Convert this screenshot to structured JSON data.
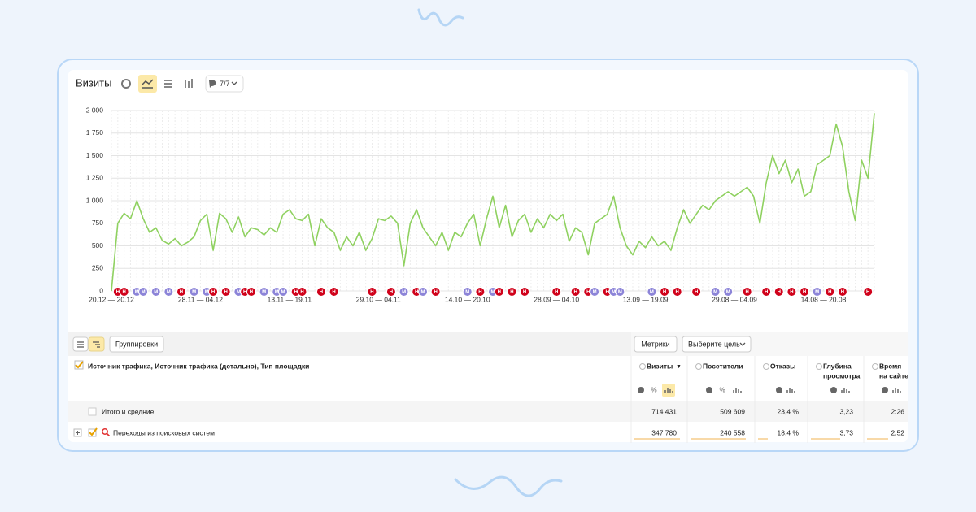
{
  "header": {
    "title": "Визиты",
    "counter": "7/7"
  },
  "chart_data": {
    "type": "line",
    "categories": [
      "20.12 — 20.12",
      null,
      null,
      null,
      null,
      null,
      null,
      null,
      null,
      null,
      null,
      null,
      null,
      null,
      "28.11 — 04.12",
      null,
      null,
      null,
      null,
      null,
      null,
      null,
      null,
      null,
      null,
      null,
      null,
      null,
      "13.11 — 19.11",
      null,
      null,
      null,
      null,
      null,
      null,
      null,
      null,
      null,
      null,
      null,
      null,
      null,
      "29.10 — 04.11",
      null,
      null,
      null,
      null,
      null,
      null,
      null,
      null,
      null,
      null,
      null,
      null,
      null,
      "14.10 — 20.10",
      null,
      null,
      null,
      null,
      null,
      null,
      null,
      null,
      null,
      null,
      null,
      null,
      null,
      "28.09 — 04.10",
      null,
      null,
      null,
      null,
      null,
      null,
      null,
      null,
      null,
      null,
      null,
      null,
      null,
      "13.09 — 19.09",
      null,
      null,
      null,
      null,
      null,
      null,
      null,
      null,
      null,
      null,
      null,
      null,
      null,
      "29.08 — 04.09",
      null,
      null,
      null,
      null,
      null,
      null,
      null,
      null,
      null,
      null,
      null,
      null,
      null,
      "14.08 — 20.08",
      null,
      null,
      null,
      null,
      null,
      null,
      null,
      null
    ],
    "series": [
      {
        "color": "#8fd160",
        "values": [
          0,
          750,
          860,
          800,
          1000,
          800,
          650,
          700,
          560,
          520,
          580,
          500,
          540,
          600,
          780,
          850,
          450,
          860,
          800,
          650,
          820,
          600,
          700,
          680,
          620,
          700,
          650,
          850,
          900,
          800,
          780,
          850,
          500,
          800,
          700,
          650,
          450,
          600,
          500,
          650,
          450,
          580,
          800,
          780,
          830,
          750,
          280,
          750,
          900,
          700,
          600,
          500,
          650,
          450,
          650,
          600,
          750,
          850,
          500,
          800,
          1050,
          700,
          950,
          600,
          780,
          850,
          650,
          800,
          700,
          850,
          780,
          850,
          550,
          700,
          650,
          400,
          750,
          800,
          850,
          1050,
          700,
          500,
          400,
          550,
          480,
          600,
          500,
          550,
          450,
          700,
          900,
          750,
          850,
          950,
          900,
          1000,
          1050,
          1100,
          1050,
          1100,
          1150,
          1050,
          750,
          1200,
          1500,
          1300,
          1450,
          1200,
          1350,
          1050,
          1100,
          1400,
          1450,
          1500,
          1850,
          1600,
          1100,
          780,
          1450,
          1250,
          1970
        ]
      }
    ],
    "ylim": [
      0,
      2000
    ],
    "yticks": [
      0,
      250,
      500,
      750,
      {
        "value": 1000,
        "label": "1 000"
      },
      {
        "value": 1250,
        "label": "1 250"
      },
      {
        "value": 1500,
        "label": "1 500"
      },
      {
        "value": 1750,
        "label": "1 750"
      },
      {
        "value": 2000,
        "label": "2 000"
      }
    ],
    "grid": true,
    "markers": [
      {
        "x": 1,
        "label": "Н",
        "color": "#d0021b"
      },
      {
        "x": 2,
        "label": "Н",
        "color": "#d0021b"
      },
      {
        "x": 4,
        "label": "М",
        "color": "#8c84d8"
      },
      {
        "x": 5,
        "label": "М",
        "color": "#8c84d8"
      },
      {
        "x": 7,
        "label": "М",
        "color": "#8c84d8"
      },
      {
        "x": 9,
        "label": "М",
        "color": "#8c84d8"
      },
      {
        "x": 11,
        "label": "Н",
        "color": "#d0021b"
      },
      {
        "x": 13,
        "label": "М",
        "color": "#8c84d8"
      },
      {
        "x": 15,
        "label": "М",
        "color": "#8c84d8"
      },
      {
        "x": 16,
        "label": "Н",
        "color": "#d0021b"
      },
      {
        "x": 18,
        "label": "Н",
        "color": "#d0021b"
      },
      {
        "x": 20,
        "label": "М",
        "color": "#8c84d8"
      },
      {
        "x": 21,
        "label": "Н",
        "color": "#d0021b"
      },
      {
        "x": 22,
        "label": "Н",
        "color": "#d0021b"
      },
      {
        "x": 24,
        "label": "М",
        "color": "#8c84d8"
      },
      {
        "x": 26,
        "label": "М",
        "color": "#8c84d8"
      },
      {
        "x": 27,
        "label": "М",
        "color": "#8c84d8"
      },
      {
        "x": 29,
        "label": "Н",
        "color": "#d0021b"
      },
      {
        "x": 30,
        "label": "Н",
        "color": "#d0021b"
      },
      {
        "x": 33,
        "label": "Н",
        "color": "#d0021b"
      },
      {
        "x": 35,
        "label": "Н",
        "color": "#d0021b"
      },
      {
        "x": 41,
        "label": "Н",
        "color": "#d0021b"
      },
      {
        "x": 44,
        "label": "Н",
        "color": "#d0021b"
      },
      {
        "x": 46,
        "label": "М",
        "color": "#8c84d8"
      },
      {
        "x": 48,
        "label": "Н",
        "color": "#d0021b"
      },
      {
        "x": 49,
        "label": "М",
        "color": "#8c84d8"
      },
      {
        "x": 51,
        "label": "Н",
        "color": "#d0021b"
      },
      {
        "x": 56,
        "label": "М",
        "color": "#8c84d8"
      },
      {
        "x": 58,
        "label": "Н",
        "color": "#d0021b"
      },
      {
        "x": 60,
        "label": "М",
        "color": "#8c84d8"
      },
      {
        "x": 61,
        "label": "Н",
        "color": "#d0021b"
      },
      {
        "x": 63,
        "label": "Н",
        "color": "#d0021b"
      },
      {
        "x": 65,
        "label": "Н",
        "color": "#d0021b"
      },
      {
        "x": 70,
        "label": "Н",
        "color": "#d0021b"
      },
      {
        "x": 73,
        "label": "Н",
        "color": "#d0021b"
      },
      {
        "x": 75,
        "label": "Н",
        "color": "#d0021b"
      },
      {
        "x": 76,
        "label": "М",
        "color": "#8c84d8"
      },
      {
        "x": 78,
        "label": "Н",
        "color": "#d0021b"
      },
      {
        "x": 79,
        "label": "М",
        "color": "#8c84d8"
      },
      {
        "x": 80,
        "label": "М",
        "color": "#8c84d8"
      },
      {
        "x": 85,
        "label": "М",
        "color": "#8c84d8"
      },
      {
        "x": 87,
        "label": "Н",
        "color": "#d0021b"
      },
      {
        "x": 89,
        "label": "Н",
        "color": "#d0021b"
      },
      {
        "x": 92,
        "label": "Н",
        "color": "#d0021b"
      },
      {
        "x": 95,
        "label": "М",
        "color": "#8c84d8"
      },
      {
        "x": 97,
        "label": "М",
        "color": "#8c84d8"
      },
      {
        "x": 100,
        "label": "Н",
        "color": "#d0021b"
      },
      {
        "x": 103,
        "label": "Н",
        "color": "#d0021b"
      },
      {
        "x": 105,
        "label": "Н",
        "color": "#d0021b"
      },
      {
        "x": 107,
        "label": "Н",
        "color": "#d0021b"
      },
      {
        "x": 109,
        "label": "Н",
        "color": "#d0021b"
      },
      {
        "x": 111,
        "label": "М",
        "color": "#8c84d8"
      },
      {
        "x": 113,
        "label": "Н",
        "color": "#d0021b"
      },
      {
        "x": 115,
        "label": "Н",
        "color": "#d0021b"
      },
      {
        "x": 119,
        "label": "Н",
        "color": "#d0021b"
      }
    ]
  },
  "toolbar": {
    "groupings": "Группировки",
    "metrics": "Метрики",
    "goal": "Выберите цель"
  },
  "table": {
    "dimension": "Источник трафика, Источник трафика (детально), Тип площадки",
    "sort_mark": "▼",
    "percent": "%",
    "columns": [
      [
        "Визиты"
      ],
      [
        "Посетители"
      ],
      [
        "Отказы"
      ],
      [
        "Глубина",
        "просмотра"
      ],
      [
        "Время",
        "на сайте"
      ]
    ],
    "rows": [
      [
        "Итого и средние",
        "714 431",
        "509 609",
        "23,4 %",
        "3,23",
        "2:26"
      ],
      [
        "Переходы из поисковых систем",
        "347 780",
        "240 558",
        "18,4 %",
        "3,73",
        "2:52"
      ]
    ]
  }
}
